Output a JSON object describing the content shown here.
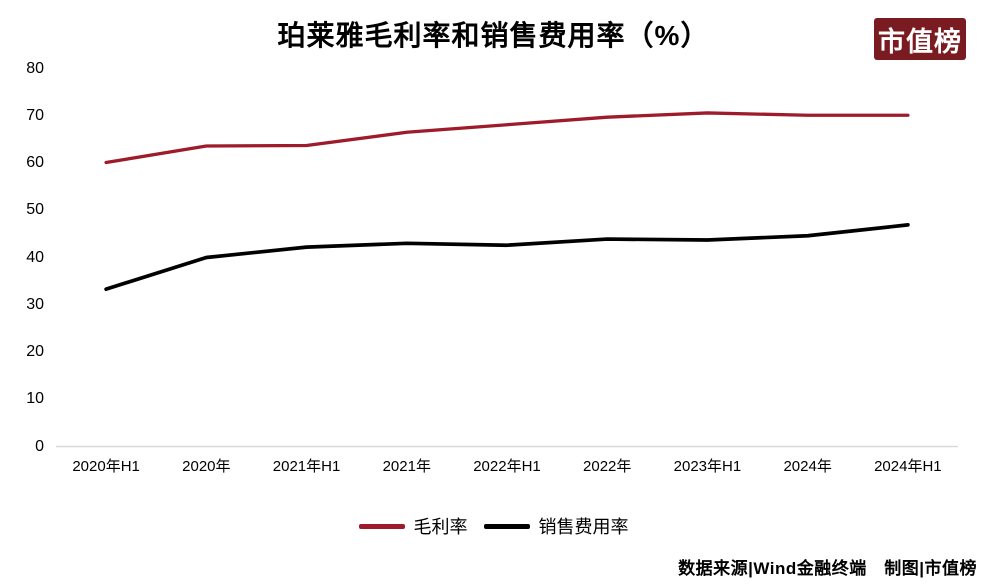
{
  "title": "珀莱雅毛利率和销售费用率（%）",
  "logo": {
    "text": "市值榜",
    "bg_color": "#7A1B21",
    "text_color": "#FFFFFF"
  },
  "footer": {
    "text": "数据来源|Wind金融终端　制图|市值榜"
  },
  "chart_data": {
    "type": "line",
    "title": "珀莱雅毛利率和销售费用率（%）",
    "categories": [
      "2020年H1",
      "2020年",
      "2021年H1",
      "2021年",
      "2022年H1",
      "2022年",
      "2023年H1",
      "2024年",
      "2024年H1"
    ],
    "series": [
      {
        "name": "毛利率",
        "color": "#9E1B2C",
        "values": [
          60.1,
          63.6,
          63.7,
          66.5,
          68.1,
          69.7,
          70.6,
          70.1,
          70.1
        ]
      },
      {
        "name": "销售费用率",
        "color": "#000000",
        "values": [
          33.3,
          40.0,
          42.2,
          43.0,
          42.6,
          43.9,
          43.7,
          44.6,
          46.9
        ]
      }
    ],
    "xlabel": "",
    "ylabel": "",
    "ylim": [
      0,
      80
    ],
    "ytick_step": 10,
    "grid": false,
    "legend_position": "bottom",
    "axis_color": "#D9D9D9"
  }
}
